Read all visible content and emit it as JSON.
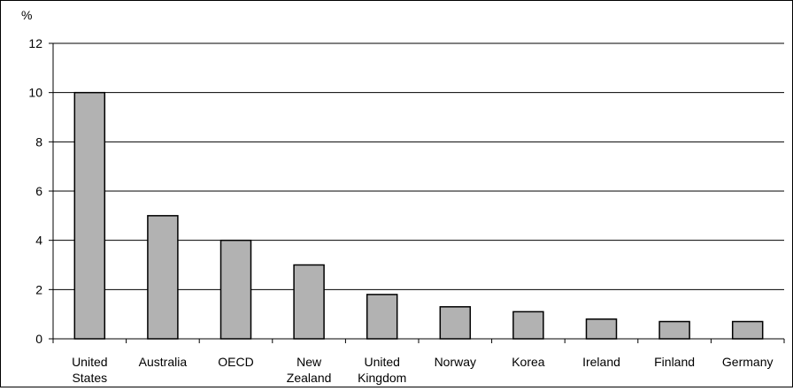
{
  "chart_data": {
    "type": "bar",
    "title": "",
    "xlabel": "",
    "ylabel": "%",
    "ylim": [
      0,
      12
    ],
    "yticks": [
      0,
      2,
      4,
      6,
      8,
      10,
      12
    ],
    "categories": [
      [
        "United",
        "States"
      ],
      [
        "Australia"
      ],
      [
        "OECD"
      ],
      [
        "New",
        "Zealand"
      ],
      [
        "United",
        "Kingdom"
      ],
      [
        "Norway"
      ],
      [
        "Korea"
      ],
      [
        "Ireland"
      ],
      [
        "Finland"
      ],
      [
        "Germany"
      ]
    ],
    "values": [
      10.0,
      5.0,
      4.0,
      3.0,
      1.8,
      1.3,
      1.1,
      0.8,
      0.7,
      0.7
    ],
    "grid": true,
    "legend": "none",
    "colors": {
      "bar_fill": "#b2b2b2",
      "bar_stroke": "#000000",
      "grid": "#000000"
    }
  }
}
